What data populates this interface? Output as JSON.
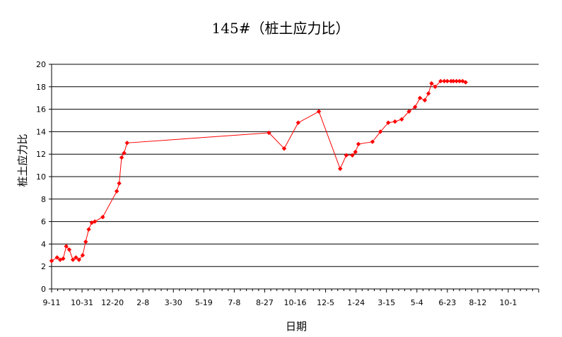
{
  "chart_data": {
    "type": "line",
    "title": "145#（桩土应力比）",
    "xlabel": "日期",
    "ylabel": "桩土应力比",
    "ylim": [
      0,
      20
    ],
    "ytick_step": 2,
    "grid": "horizontal",
    "legend": "none",
    "x_tick_labels": [
      "9-11",
      "10-31",
      "12-20",
      "2-8",
      "3-30",
      "5-19",
      "7-8",
      "8-27",
      "10-16",
      "12-5",
      "1-24",
      "3-15",
      "5-4",
      "6-23",
      "8-12",
      "10-1"
    ],
    "x_range_days": [
      0,
      800
    ],
    "colors": {
      "series": "#ff0000"
    },
    "series": [
      {
        "x_day": [
          0,
          9,
          14,
          19,
          24,
          29,
          35,
          40,
          45,
          51,
          56,
          61,
          66,
          71,
          84,
          107,
          111,
          115,
          119,
          124,
          357,
          382,
          405,
          439,
          474,
          484,
          494,
          499,
          504,
          527,
          540,
          553,
          564,
          575,
          587,
          597,
          605,
          613,
          619,
          624,
          630,
          639,
          645,
          650,
          656,
          660,
          665,
          670,
          675,
          680
        ],
        "y": [
          2.5,
          2.8,
          2.6,
          2.7,
          3.8,
          3.5,
          2.6,
          2.8,
          2.6,
          3.0,
          4.2,
          5.3,
          5.9,
          6.0,
          6.4,
          8.7,
          9.4,
          11.7,
          12.1,
          13.0,
          13.9,
          12.5,
          14.8,
          15.8,
          10.7,
          11.9,
          11.9,
          12.2,
          12.9,
          13.1,
          14.0,
          14.8,
          14.9,
          15.1,
          15.8,
          16.2,
          17.0,
          16.8,
          17.4,
          18.3,
          18.0,
          18.5,
          18.5,
          18.5,
          18.5,
          18.5,
          18.5,
          18.5,
          18.5,
          18.4
        ]
      }
    ]
  }
}
